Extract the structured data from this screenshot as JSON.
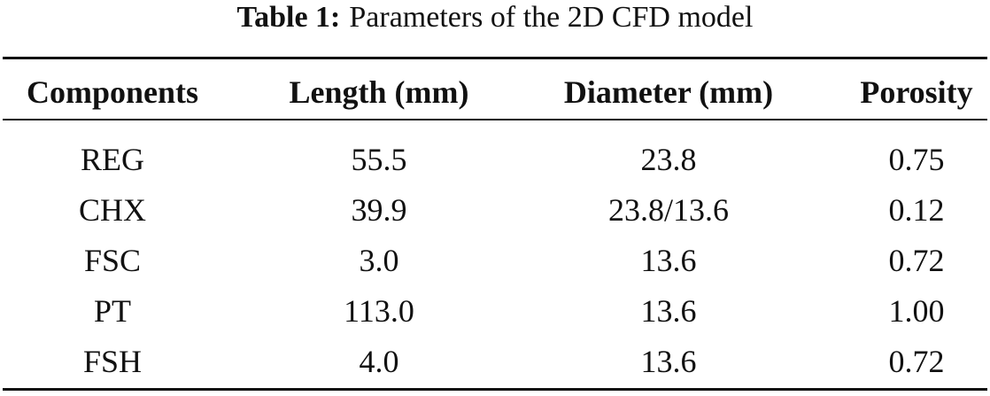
{
  "caption": {
    "label": "Table 1:",
    "text": "Parameters of the 2D CFD model"
  },
  "table": {
    "header": [
      "Components",
      "Length (mm)",
      "Diameter (mm)",
      "Porosity"
    ],
    "rows": [
      [
        "REG",
        "55.5",
        "23.8",
        "0.75"
      ],
      [
        "CHX",
        "39.9",
        "23.8/13.6",
        "0.12"
      ],
      [
        "FSC",
        "3.0",
        "13.6",
        "0.72"
      ],
      [
        "PT",
        "113.0",
        "13.6",
        "1.00"
      ],
      [
        "FSH",
        "4.0",
        "13.6",
        "0.72"
      ]
    ]
  }
}
